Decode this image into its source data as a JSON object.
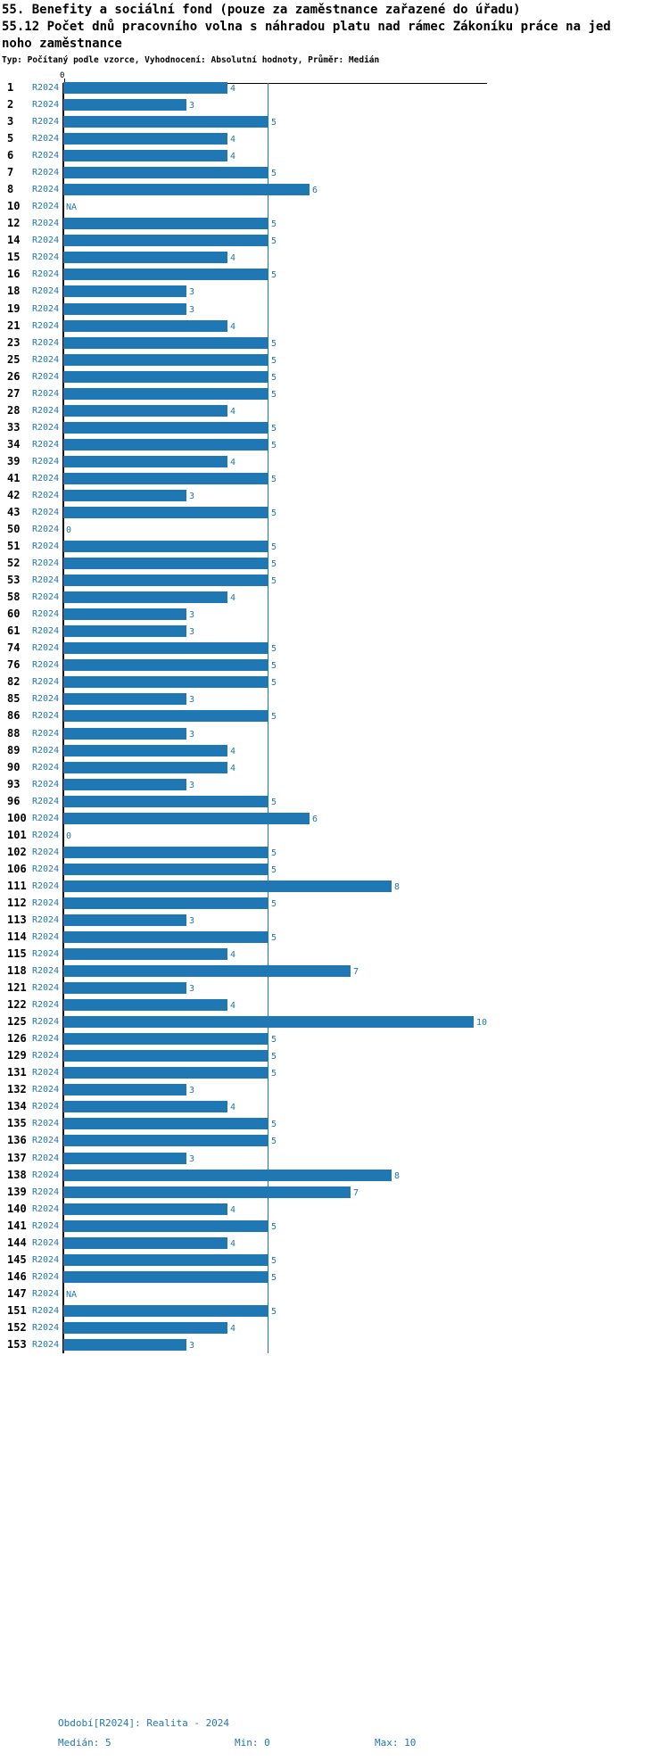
{
  "header": {
    "title_line1": "55. Benefity a sociální fond (pouze za zaměstnance zařazené do úřadu)",
    "title_line2": "55.12 Počet dnů pracovního volna s náhradou platu nad rámec Zákoníku práce na jed",
    "title_line3": "noho zaměstnance",
    "meta": "Typ: Počítaný podle vzorce, Vyhodnocení: Absolutní hodnoty, Průměr: Medián"
  },
  "chart_data": {
    "type": "bar",
    "orientation": "horizontal",
    "series_label": "R2024",
    "na_text": "NA",
    "categories": [
      "1",
      "2",
      "3",
      "5",
      "6",
      "7",
      "8",
      "10",
      "12",
      "14",
      "15",
      "16",
      "18",
      "19",
      "21",
      "23",
      "25",
      "26",
      "27",
      "28",
      "33",
      "34",
      "39",
      "41",
      "42",
      "43",
      "50",
      "51",
      "52",
      "53",
      "58",
      "60",
      "61",
      "74",
      "76",
      "82",
      "85",
      "86",
      "88",
      "89",
      "90",
      "93",
      "96",
      "100",
      "101",
      "102",
      "106",
      "111",
      "112",
      "113",
      "114",
      "115",
      "118",
      "121",
      "122",
      "125",
      "126",
      "129",
      "131",
      "132",
      "134",
      "135",
      "136",
      "137",
      "138",
      "139",
      "140",
      "141",
      "144",
      "145",
      "146",
      "147",
      "151",
      "152",
      "153"
    ],
    "values": [
      4,
      3,
      5,
      4,
      4,
      5,
      6,
      null,
      5,
      5,
      4,
      5,
      3,
      3,
      4,
      5,
      5,
      5,
      5,
      4,
      5,
      5,
      4,
      5,
      3,
      5,
      0,
      5,
      5,
      5,
      4,
      3,
      3,
      5,
      5,
      5,
      3,
      5,
      3,
      4,
      4,
      3,
      5,
      6,
      0,
      5,
      5,
      8,
      5,
      3,
      5,
      4,
      7,
      3,
      4,
      10,
      5,
      5,
      5,
      3,
      4,
      5,
      5,
      3,
      8,
      7,
      4,
      5,
      4,
      5,
      5,
      null,
      5,
      4,
      3
    ],
    "axis": {
      "x_min": 0,
      "x_max": 10,
      "tick_labels": [
        "0"
      ],
      "median_line_value": 5
    },
    "legend_position": "none",
    "grid": false,
    "colors": {
      "bar": "#1f77b4",
      "value_label": "#1f77b4",
      "axis": "#000000"
    }
  },
  "footer": {
    "period": "Období[R2024]: Realita - 2024",
    "median": "Medián: 5",
    "min": "Min: 0",
    "max": "Max: 10"
  }
}
